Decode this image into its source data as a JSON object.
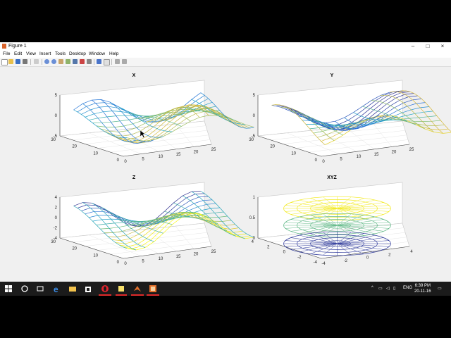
{
  "window": {
    "title": "Figure 1",
    "menu": [
      "File",
      "Edit",
      "View",
      "Insert",
      "Tools",
      "Desktop",
      "Window",
      "Help"
    ],
    "controls": [
      "–",
      "□",
      "×"
    ]
  },
  "plots": [
    {
      "title": "X",
      "zticks": [
        "5",
        "0",
        "-5"
      ],
      "yticks": [
        "30",
        "20",
        "10",
        "0"
      ],
      "xticks": [
        "0",
        "5",
        "10",
        "15",
        "20",
        "25"
      ]
    },
    {
      "title": "Y",
      "zticks": [
        "5",
        "0",
        "-5"
      ],
      "yticks": [
        "30",
        "20",
        "10",
        "0"
      ],
      "xticks": [
        "0",
        "5",
        "10",
        "15",
        "20",
        "25"
      ]
    },
    {
      "title": "Z",
      "zticks": [
        "4",
        "2",
        "0",
        "-2",
        "-4"
      ],
      "yticks": [
        "30",
        "20",
        "10",
        "0"
      ],
      "xticks": [
        "0",
        "5",
        "10",
        "15",
        "20",
        "25"
      ]
    },
    {
      "title": "XYZ",
      "zticks": [
        "1",
        "0.5",
        "0"
      ],
      "yticks": [
        "4",
        "2",
        "0",
        "-2",
        "-4"
      ],
      "xticks": [
        "-4",
        "-2",
        "0",
        "2",
        "4"
      ]
    }
  ],
  "taskbar": {
    "tray_lang": "ENG",
    "time": "6:39 PM",
    "date": "20-11-16"
  }
}
